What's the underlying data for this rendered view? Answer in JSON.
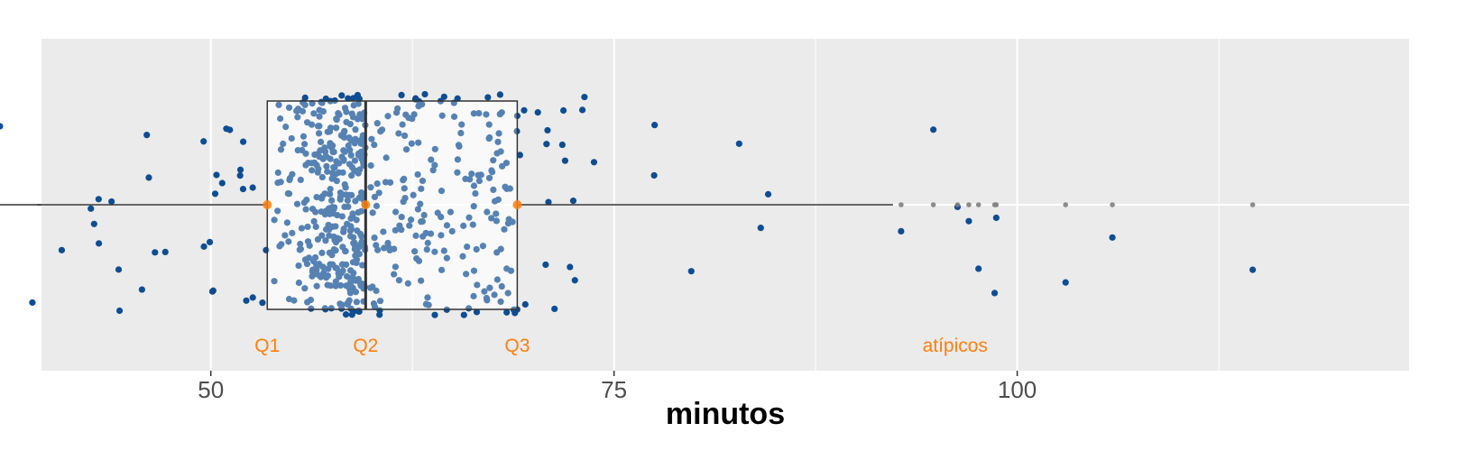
{
  "chart_data": {
    "type": "boxplot-jitter",
    "title": "",
    "xlabel": "minutos",
    "ylabel": "",
    "xlim": [
      39.5,
      124.3
    ],
    "x_ticks": [
      50,
      75,
      100
    ],
    "x_tick_labels": [
      "50",
      "75",
      "100"
    ],
    "grid": true,
    "legend": "none",
    "box": {
      "q1": 53.5,
      "median": 59.6,
      "q3": 69.0,
      "whisker_low": 33.0,
      "whisker_high": 92.3
    },
    "outliers": [
      92.8,
      94.8,
      96.3,
      97.0,
      97.6,
      98.6,
      98.7,
      103.0,
      105.9,
      114.6
    ],
    "quartile_labels": [
      "Q1",
      "Q2",
      "Q3"
    ],
    "outlier_label": "atípicos",
    "n_points": 620,
    "colors": {
      "panel": "#EBEBEB",
      "grid": "#FFFFFF",
      "points": "#0E4D92",
      "box_fill": "#FFFFFF",
      "box_line": "#333333",
      "outlier_marker": "#808080",
      "annotation": "#FF7F0E",
      "text": "#4D4D4D"
    }
  }
}
